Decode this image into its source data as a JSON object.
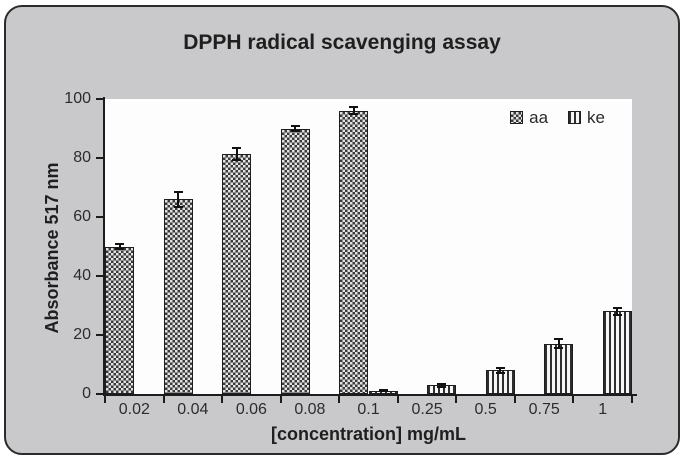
{
  "chart_data": {
    "type": "bar",
    "title": "DPPH radical scavenging assay",
    "xlabel": "[concentration] mg/mL",
    "ylabel": "Absorbance 517 nm",
    "ylim": [
      0,
      100
    ],
    "yticks": [
      0,
      20,
      40,
      60,
      80,
      100
    ],
    "categories": [
      "0.02",
      "0.04",
      "0.06",
      "0.08",
      "0.1",
      "0.25",
      "0.5",
      "0.75",
      "1"
    ],
    "series": [
      {
        "name": "aa",
        "pattern": "checker",
        "values": [
          50,
          66,
          81.5,
          90,
          96,
          0,
          0,
          0,
          0
        ],
        "errors": [
          1,
          2.5,
          2,
          1,
          1.2,
          0,
          0,
          0,
          0
        ]
      },
      {
        "name": "ke",
        "pattern": "vstripes",
        "values": [
          0,
          0,
          0,
          0,
          1.2,
          3,
          8,
          17,
          28
        ],
        "errors": [
          0,
          0,
          0,
          0,
          0.3,
          0.5,
          0.8,
          1.5,
          1.3
        ]
      }
    ],
    "legend_position": "top-right",
    "grid": false,
    "colors": {
      "frame_background": "#c9c9cb",
      "frame_border": "#2b2b2b",
      "plot_background": "#fdfdfd",
      "ink": "#1e1e1e"
    }
  }
}
